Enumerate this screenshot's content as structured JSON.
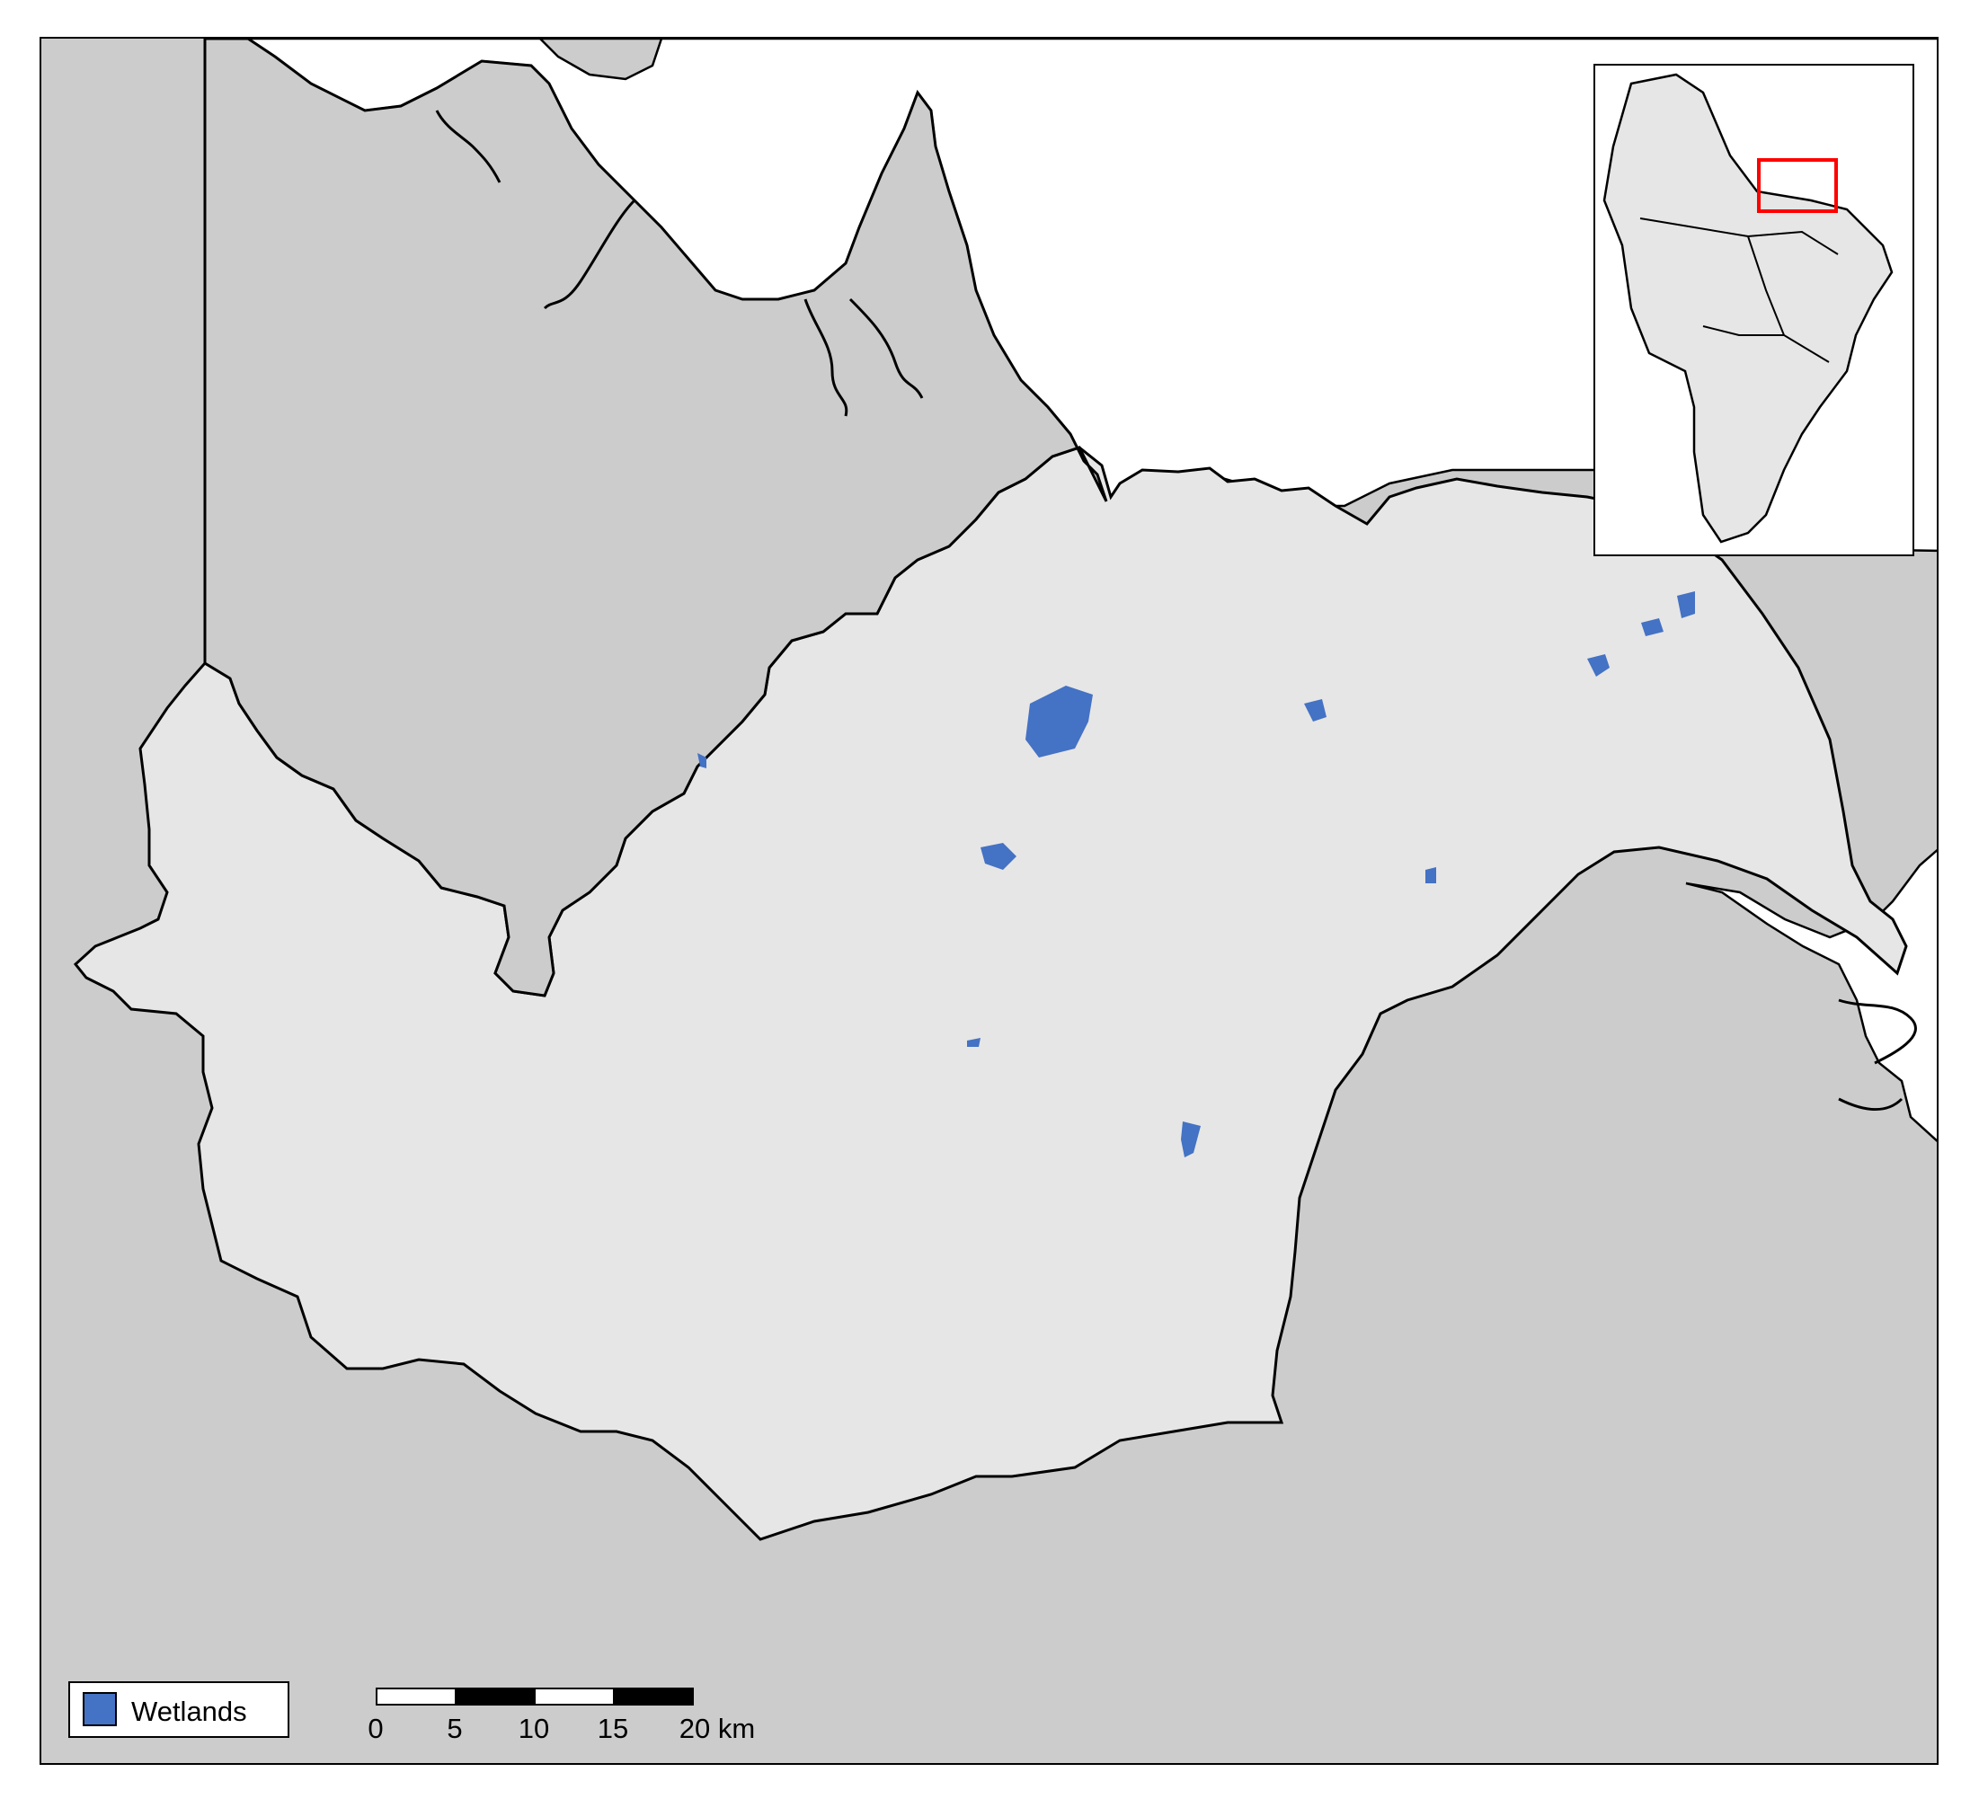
{
  "map": {
    "colors": {
      "basin_fill": "#e6e6e6",
      "neighbor_fill": "#cccccc",
      "sea_fill": "#ffffff",
      "boundary_stroke": "#000000",
      "wetland_fill": "#4472c4",
      "inset_highlight": "#ff0000"
    },
    "legend": {
      "items": [
        {
          "label": "Wetlands",
          "color": "#4472c4"
        }
      ]
    },
    "scale_bar": {
      "ticks": [
        "0",
        "5",
        "10",
        "15",
        "20 km"
      ],
      "unit": "km"
    },
    "inset": {
      "highlight_color": "#ff0000"
    }
  }
}
